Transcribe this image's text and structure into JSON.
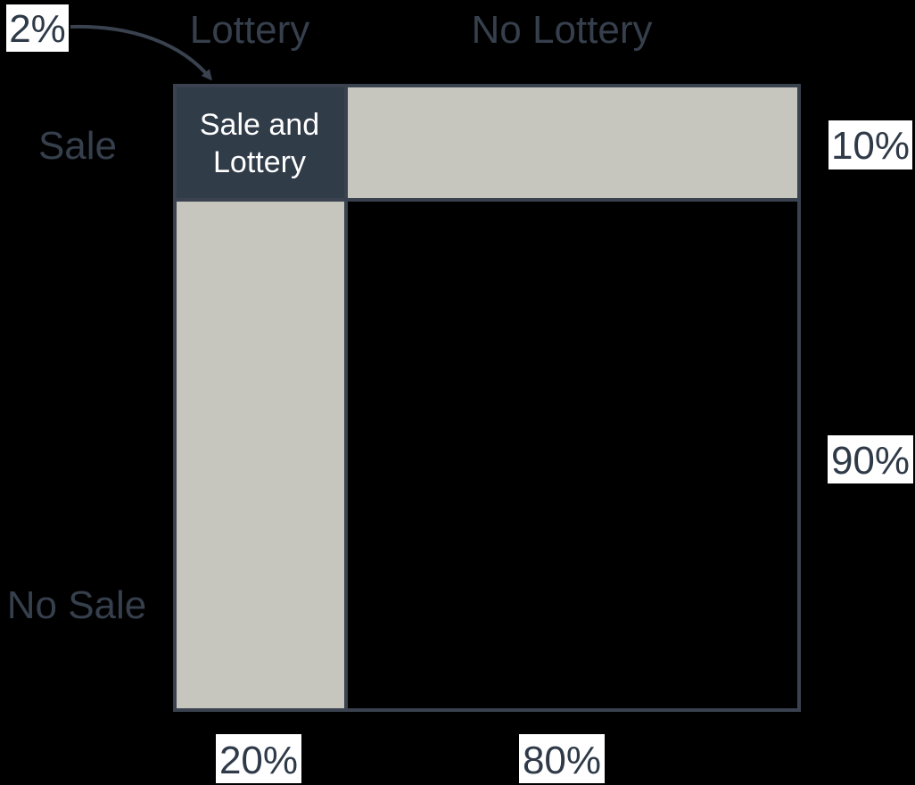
{
  "columns": [
    {
      "label": "Lottery",
      "percent_label": "20%",
      "share": 0.2
    },
    {
      "label": "No Lottery",
      "percent_label": "80%",
      "share": 0.8
    }
  ],
  "rows": [
    {
      "label": "Sale",
      "percent_label": "10%",
      "share": 0.1
    },
    {
      "label": "No Sale",
      "percent_label": "90%",
      "share": 0.9
    }
  ],
  "intersection": {
    "label_line1": "Sale and",
    "label_line2": "Lottery",
    "percent_label": "2%"
  },
  "colors": {
    "background": "#000000",
    "intersection_fill": "#313c49",
    "marginal_fill": "#c6c6be",
    "border": "#39424e",
    "label_box": "#ffffff",
    "label_text": "#363f4c"
  }
}
